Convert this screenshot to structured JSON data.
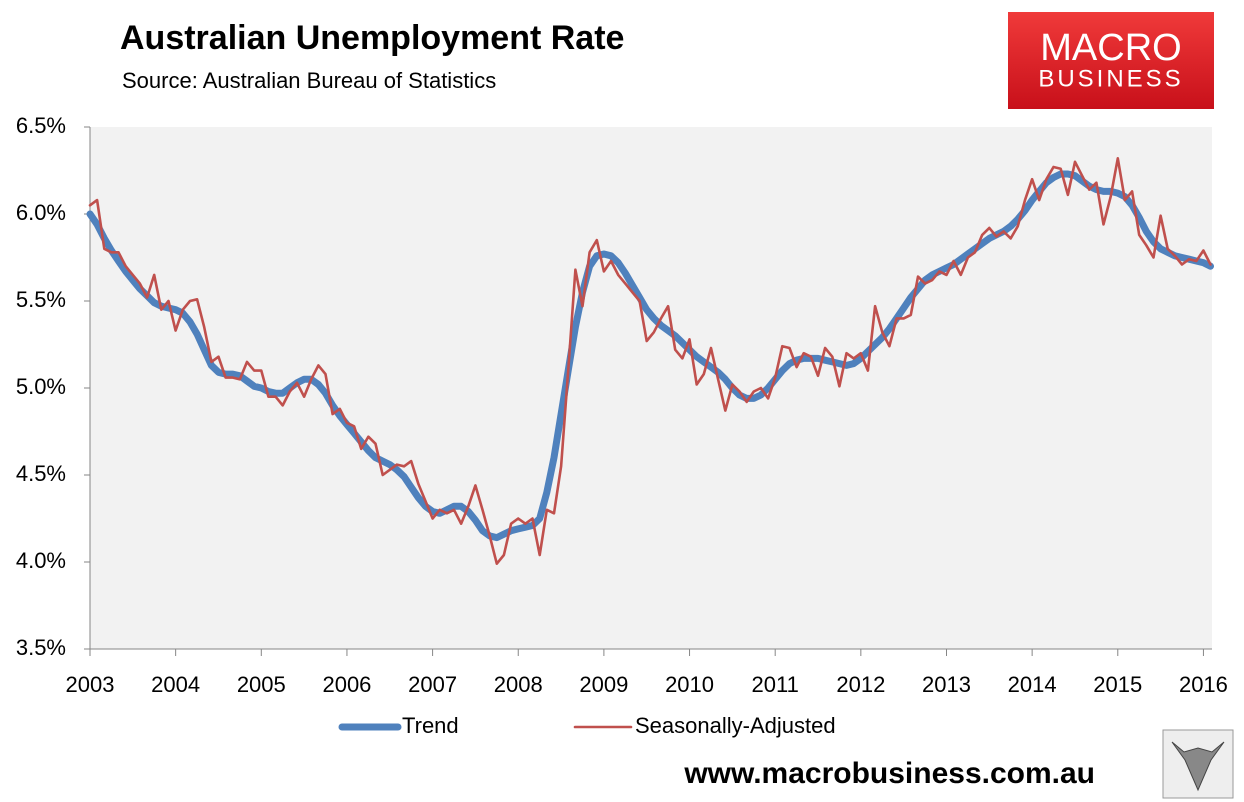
{
  "chart_data": {
    "type": "line",
    "title": "Australian Unemployment Rate",
    "subtitle": "Source: Australian Bureau of Statistics",
    "x": [
      2003,
      2003.083,
      2003.167,
      2003.25,
      2003.333,
      2003.417,
      2003.5,
      2003.583,
      2003.667,
      2003.75,
      2003.833,
      2003.917,
      2004,
      2004.083,
      2004.167,
      2004.25,
      2004.333,
      2004.417,
      2004.5,
      2004.583,
      2004.667,
      2004.75,
      2004.833,
      2004.917,
      2005,
      2005.083,
      2005.167,
      2005.25,
      2005.333,
      2005.417,
      2005.5,
      2005.583,
      2005.667,
      2005.75,
      2005.833,
      2005.917,
      2006,
      2006.083,
      2006.167,
      2006.25,
      2006.333,
      2006.417,
      2006.5,
      2006.583,
      2006.667,
      2006.75,
      2006.833,
      2006.917,
      2007,
      2007.083,
      2007.167,
      2007.25,
      2007.333,
      2007.417,
      2007.5,
      2007.583,
      2007.667,
      2007.75,
      2007.833,
      2007.917,
      2008,
      2008.083,
      2008.167,
      2008.25,
      2008.333,
      2008.417,
      2008.5,
      2008.583,
      2008.667,
      2008.75,
      2008.833,
      2008.917,
      2009,
      2009.083,
      2009.167,
      2009.25,
      2009.333,
      2009.417,
      2009.5,
      2009.583,
      2009.667,
      2009.75,
      2009.833,
      2009.917,
      2010,
      2010.083,
      2010.167,
      2010.25,
      2010.333,
      2010.417,
      2010.5,
      2010.583,
      2010.667,
      2010.75,
      2010.833,
      2010.917,
      2011,
      2011.083,
      2011.167,
      2011.25,
      2011.333,
      2011.417,
      2011.5,
      2011.583,
      2011.667,
      2011.75,
      2011.833,
      2011.917,
      2012,
      2012.083,
      2012.167,
      2012.25,
      2012.333,
      2012.417,
      2012.5,
      2012.583,
      2012.667,
      2012.75,
      2012.833,
      2012.917,
      2013,
      2013.083,
      2013.167,
      2013.25,
      2013.333,
      2013.417,
      2013.5,
      2013.583,
      2013.667,
      2013.75,
      2013.833,
      2013.917,
      2014,
      2014.083,
      2014.167,
      2014.25,
      2014.333,
      2014.417,
      2014.5,
      2014.583,
      2014.667,
      2014.75,
      2014.833,
      2014.917,
      2015,
      2015.083,
      2015.167,
      2015.25,
      2015.333,
      2015.417,
      2015.5,
      2015.583,
      2015.667,
      2015.75,
      2015.833,
      2015.917,
      2016,
      2016.083
    ],
    "series": [
      {
        "name": "Trend",
        "color": "#4f81bd",
        "values": [
          6.0,
          5.94,
          5.86,
          5.79,
          5.73,
          5.67,
          5.62,
          5.57,
          5.53,
          5.49,
          5.47,
          5.46,
          5.45,
          5.43,
          5.38,
          5.31,
          5.22,
          5.13,
          5.09,
          5.08,
          5.08,
          5.07,
          5.04,
          5.01,
          5.0,
          4.98,
          4.97,
          4.97,
          5.0,
          5.03,
          5.05,
          5.05,
          5.02,
          4.97,
          4.9,
          4.84,
          4.79,
          4.74,
          4.69,
          4.64,
          4.6,
          4.58,
          4.56,
          4.53,
          4.49,
          4.43,
          4.37,
          4.32,
          4.29,
          4.28,
          4.3,
          4.32,
          4.32,
          4.29,
          4.24,
          4.18,
          4.15,
          4.14,
          4.16,
          4.18,
          4.19,
          4.2,
          4.21,
          4.25,
          4.4,
          4.6,
          4.85,
          5.1,
          5.35,
          5.55,
          5.7,
          5.76,
          5.77,
          5.76,
          5.72,
          5.66,
          5.59,
          5.52,
          5.45,
          5.4,
          5.36,
          5.33,
          5.3,
          5.26,
          5.22,
          5.18,
          5.15,
          5.12,
          5.09,
          5.05,
          5.0,
          4.96,
          4.94,
          4.94,
          4.96,
          5.0,
          5.05,
          5.1,
          5.14,
          5.16,
          5.17,
          5.17,
          5.17,
          5.16,
          5.15,
          5.14,
          5.13,
          5.14,
          5.17,
          5.21,
          5.25,
          5.29,
          5.34,
          5.4,
          5.46,
          5.52,
          5.57,
          5.62,
          5.65,
          5.67,
          5.69,
          5.71,
          5.74,
          5.77,
          5.8,
          5.83,
          5.86,
          5.88,
          5.9,
          5.93,
          5.97,
          6.02,
          6.08,
          6.13,
          6.18,
          6.21,
          6.23,
          6.23,
          6.22,
          6.19,
          6.16,
          6.14,
          6.13,
          6.13,
          6.12,
          6.1,
          6.05,
          5.98,
          5.9,
          5.84,
          5.8,
          5.78,
          5.76,
          5.75,
          5.74,
          5.73,
          5.72,
          5.7
        ]
      },
      {
        "name": "Seasonally-Adjusted",
        "color": "#c0504d",
        "values": [
          6.05,
          6.08,
          5.8,
          5.78,
          5.78,
          5.7,
          5.65,
          5.6,
          5.52,
          5.65,
          5.45,
          5.5,
          5.33,
          5.45,
          5.5,
          5.51,
          5.35,
          5.15,
          5.18,
          5.06,
          5.06,
          5.05,
          5.15,
          5.1,
          5.1,
          4.95,
          4.95,
          4.9,
          4.98,
          5.03,
          4.95,
          5.05,
          5.13,
          5.08,
          4.85,
          4.88,
          4.8,
          4.78,
          4.65,
          4.72,
          4.68,
          4.5,
          4.53,
          4.56,
          4.55,
          4.58,
          4.45,
          4.35,
          4.25,
          4.3,
          4.28,
          4.3,
          4.22,
          4.32,
          4.44,
          4.3,
          4.15,
          3.99,
          4.04,
          4.22,
          4.25,
          4.22,
          4.25,
          4.04,
          4.3,
          4.28,
          4.55,
          5.1,
          5.68,
          5.47,
          5.78,
          5.85,
          5.67,
          5.73,
          5.65,
          5.6,
          5.55,
          5.5,
          5.27,
          5.32,
          5.4,
          5.47,
          5.22,
          5.17,
          5.28,
          5.02,
          5.08,
          5.23,
          5.05,
          4.87,
          5.02,
          4.98,
          4.92,
          4.98,
          5.0,
          4.94,
          5.06,
          5.24,
          5.23,
          5.12,
          5.2,
          5.18,
          5.07,
          5.23,
          5.18,
          5.01,
          5.2,
          5.17,
          5.2,
          5.1,
          5.47,
          5.32,
          5.24,
          5.4,
          5.4,
          5.42,
          5.64,
          5.6,
          5.62,
          5.67,
          5.65,
          5.73,
          5.65,
          5.75,
          5.78,
          5.88,
          5.92,
          5.87,
          5.9,
          5.86,
          5.93,
          6.08,
          6.2,
          6.08,
          6.2,
          6.27,
          6.26,
          6.11,
          6.3,
          6.22,
          6.14,
          6.18,
          5.94,
          6.1,
          6.32,
          6.08,
          6.13,
          5.88,
          5.82,
          5.75,
          5.99,
          5.8,
          5.76,
          5.71,
          5.74,
          5.73,
          5.79,
          5.71
        ]
      }
    ],
    "xlim": [
      2003,
      2016.1
    ],
    "xticks": [
      2003,
      2004,
      2005,
      2006,
      2007,
      2008,
      2009,
      2010,
      2011,
      2012,
      2013,
      2014,
      2015,
      2016
    ],
    "ylim": [
      3.5,
      6.5
    ],
    "yticks": [
      {
        "value": 3.5,
        "label": "3.5%"
      },
      {
        "value": 4.0,
        "label": "4.0%"
      },
      {
        "value": 4.5,
        "label": "4.5%"
      },
      {
        "value": 5.0,
        "label": "5.0%"
      },
      {
        "value": 5.5,
        "label": "5.5%"
      },
      {
        "value": 6.0,
        "label": "6.0%"
      },
      {
        "value": 6.5,
        "label": "6.5%"
      }
    ],
    "legend": "bottom"
  },
  "logo": {
    "line1": "MACRO",
    "line2": "BUSINESS"
  },
  "footer": "www.macrobusiness.com.au"
}
